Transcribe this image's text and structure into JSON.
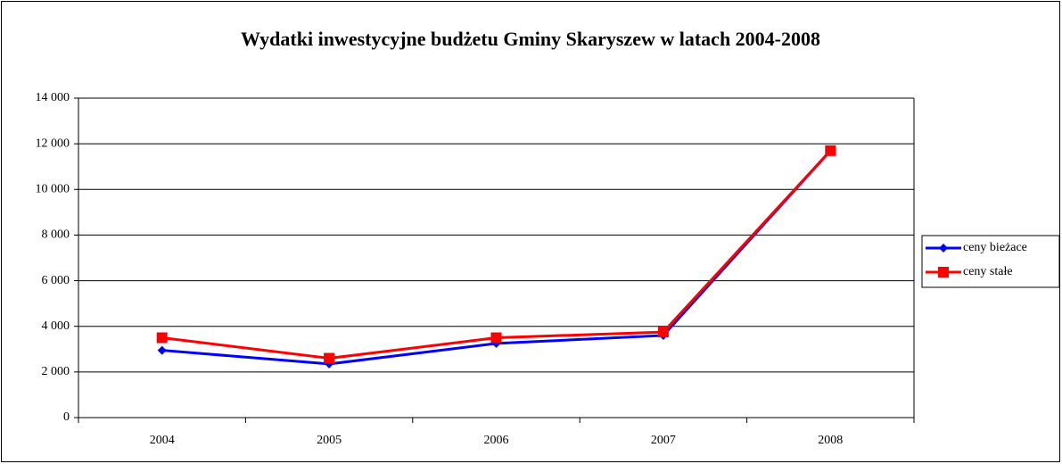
{
  "chart_data": {
    "type": "line",
    "title": "Wydatki inwestycyjne budżetu Gminy Skaryszew w latach  2004-2008",
    "categories": [
      "2004",
      "2005",
      "2006",
      "2007",
      "2008"
    ],
    "series": [
      {
        "name": "ceny bieżace",
        "color": "#0000ff",
        "marker": "diamond",
        "values": [
          2950,
          2350,
          3250,
          3600,
          11700
        ]
      },
      {
        "name": "ceny stałe",
        "color": "#ff0000",
        "marker": "square",
        "values": [
          3500,
          2600,
          3500,
          3750,
          11700
        ]
      }
    ],
    "ylim": [
      0,
      14000
    ],
    "yticks": [
      0,
      {
        "value": 2000,
        "label": "2 000"
      },
      {
        "value": 4000,
        "label": "4 000"
      },
      {
        "value": 6000,
        "label": "6 000"
      },
      {
        "value": 8000,
        "label": "8 000"
      },
      {
        "value": 10000,
        "label": "10 000"
      },
      {
        "value": 12000,
        "label": "12 000"
      },
      {
        "value": 14000,
        "label": "14 000"
      }
    ],
    "grid": true,
    "legend": "right"
  }
}
